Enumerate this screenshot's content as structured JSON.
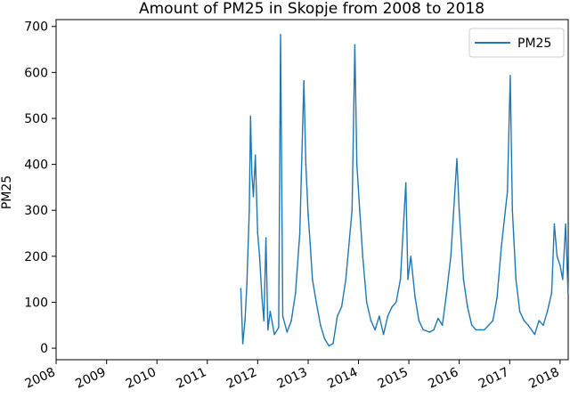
{
  "chart_data": {
    "type": "line",
    "title": "Amount of PM25 in Skopje from 2008 to 2018",
    "xlabel": "",
    "ylabel": "PM25",
    "xlim": [
      "2008-01-01",
      "2018-03-01"
    ],
    "ylim": [
      -25,
      715
    ],
    "grid": false,
    "legend_position": "top-right",
    "x_ticks": [
      "2008",
      "2009",
      "2010",
      "2011",
      "2012",
      "2013",
      "2014",
      "2015",
      "2016",
      "2017",
      "2018"
    ],
    "y_ticks": [
      0,
      100,
      200,
      300,
      400,
      500,
      600,
      700
    ],
    "series": [
      {
        "name": "PM25",
        "color": "#1f77b4",
        "data": [
          [
            "2011-09-01",
            130
          ],
          [
            "2011-09-15",
            10
          ],
          [
            "2011-10-01",
            60
          ],
          [
            "2011-10-15",
            140
          ],
          [
            "2011-11-01",
            300
          ],
          [
            "2011-11-10",
            505
          ],
          [
            "2011-11-20",
            380
          ],
          [
            "2011-12-01",
            330
          ],
          [
            "2011-12-15",
            420
          ],
          [
            "2012-01-01",
            250
          ],
          [
            "2012-01-15",
            200
          ],
          [
            "2012-02-01",
            110
          ],
          [
            "2012-02-15",
            60
          ],
          [
            "2012-03-01",
            240
          ],
          [
            "2012-03-15",
            40
          ],
          [
            "2012-04-01",
            80
          ],
          [
            "2012-05-01",
            30
          ],
          [
            "2012-06-01",
            45
          ],
          [
            "2012-06-15",
            682
          ],
          [
            "2012-07-01",
            70
          ],
          [
            "2012-08-01",
            35
          ],
          [
            "2012-09-01",
            60
          ],
          [
            "2012-10-01",
            120
          ],
          [
            "2012-11-01",
            250
          ],
          [
            "2012-12-01",
            582
          ],
          [
            "2012-12-15",
            400
          ],
          [
            "2013-01-01",
            290
          ],
          [
            "2013-01-15",
            230
          ],
          [
            "2013-02-01",
            150
          ],
          [
            "2013-03-01",
            100
          ],
          [
            "2013-04-01",
            50
          ],
          [
            "2013-05-01",
            20
          ],
          [
            "2013-06-01",
            5
          ],
          [
            "2013-07-01",
            10
          ],
          [
            "2013-08-01",
            70
          ],
          [
            "2013-09-01",
            90
          ],
          [
            "2013-10-01",
            150
          ],
          [
            "2013-11-15",
            300
          ],
          [
            "2013-12-05",
            660
          ],
          [
            "2013-12-20",
            400
          ],
          [
            "2014-01-10",
            300
          ],
          [
            "2014-02-01",
            200
          ],
          [
            "2014-03-01",
            100
          ],
          [
            "2014-04-01",
            60
          ],
          [
            "2014-05-01",
            40
          ],
          [
            "2014-06-01",
            70
          ],
          [
            "2014-07-01",
            30
          ],
          [
            "2014-08-01",
            70
          ],
          [
            "2014-09-01",
            90
          ],
          [
            "2014-10-01",
            100
          ],
          [
            "2014-11-01",
            150
          ],
          [
            "2014-12-10",
            360
          ],
          [
            "2014-12-25",
            150
          ],
          [
            "2015-01-15",
            200
          ],
          [
            "2015-02-15",
            110
          ],
          [
            "2015-03-15",
            60
          ],
          [
            "2015-04-15",
            40
          ],
          [
            "2015-06-01",
            35
          ],
          [
            "2015-07-01",
            40
          ],
          [
            "2015-08-01",
            65
          ],
          [
            "2015-09-01",
            50
          ],
          [
            "2015-10-01",
            120
          ],
          [
            "2015-11-01",
            200
          ],
          [
            "2015-12-15",
            412
          ],
          [
            "2016-01-01",
            300
          ],
          [
            "2016-02-01",
            150
          ],
          [
            "2016-03-01",
            90
          ],
          [
            "2016-04-01",
            50
          ],
          [
            "2016-05-01",
            40
          ],
          [
            "2016-06-01",
            40
          ],
          [
            "2016-07-01",
            40
          ],
          [
            "2016-08-01",
            50
          ],
          [
            "2016-09-01",
            60
          ],
          [
            "2016-10-01",
            110
          ],
          [
            "2016-11-01",
            220
          ],
          [
            "2016-12-15",
            340
          ],
          [
            "2017-01-05",
            593
          ],
          [
            "2017-01-20",
            300
          ],
          [
            "2017-02-15",
            150
          ],
          [
            "2017-03-15",
            80
          ],
          [
            "2017-04-15",
            60
          ],
          [
            "2017-05-15",
            50
          ],
          [
            "2017-07-01",
            30
          ],
          [
            "2017-08-01",
            60
          ],
          [
            "2017-09-01",
            50
          ],
          [
            "2017-10-01",
            80
          ],
          [
            "2017-11-01",
            120
          ],
          [
            "2017-11-20",
            270
          ],
          [
            "2017-12-10",
            200
          ],
          [
            "2018-01-01",
            180
          ],
          [
            "2018-01-20",
            150
          ],
          [
            "2018-02-10",
            270
          ],
          [
            "2018-02-28",
            120
          ]
        ]
      }
    ]
  }
}
